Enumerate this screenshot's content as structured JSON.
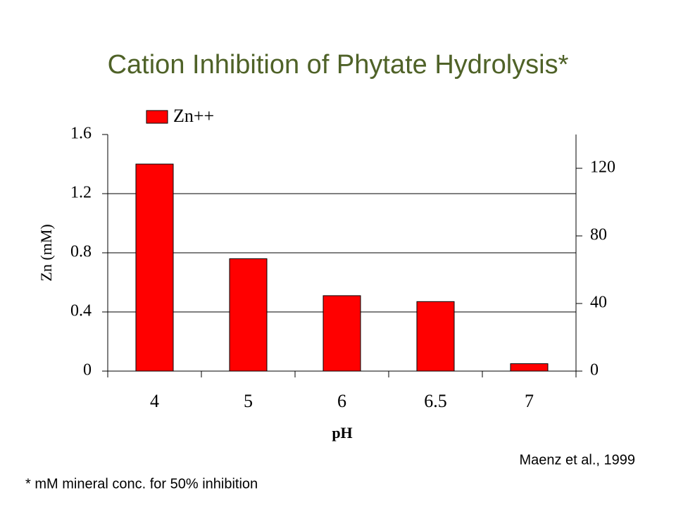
{
  "title": "Cation Inhibition of Phytate Hydrolysis*",
  "footnote": "* mM mineral conc. for 50% inhibition",
  "citation": "Maenz et al., 1999",
  "chart_data": {
    "type": "bar",
    "x_label": "pH",
    "y_label": "Zn (mM)",
    "categories": [
      "4",
      "5",
      "6",
      "6.5",
      "7"
    ],
    "series": [
      {
        "name": "Zn++",
        "color": "#ff0000",
        "values": [
          1.4,
          0.76,
          0.51,
          0.47,
          0.05
        ]
      }
    ],
    "ylim": [
      0,
      1.6
    ],
    "yticks": [
      0,
      0.4,
      0.8,
      1.2,
      1.6
    ],
    "y2lim": [
      0,
      140
    ],
    "y2ticks": [
      0,
      40,
      80,
      120
    ],
    "grid": true,
    "legend": "top"
  }
}
